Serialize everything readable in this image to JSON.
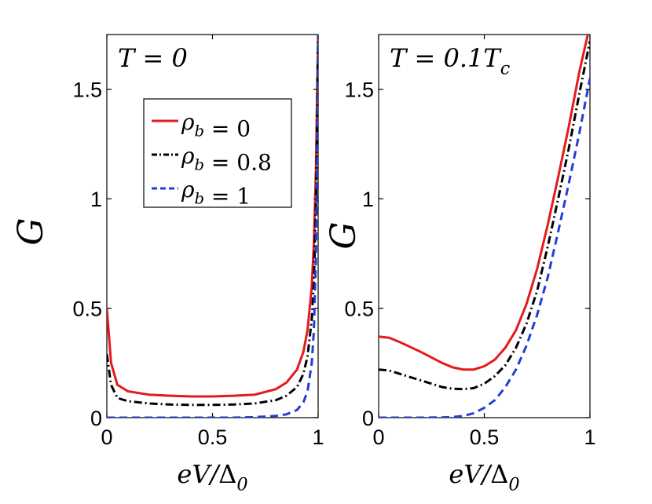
{
  "chart_data": [
    {
      "type": "line",
      "panel_label": "T = 0",
      "xlabel": "eV/Δ0",
      "ylabel": "G",
      "xlim": [
        0,
        1
      ],
      "ylim": [
        0,
        1.75
      ],
      "xticks": [
        "0",
        "0.5",
        "1"
      ],
      "yticks": [
        "0",
        "0.5",
        "1",
        "1.5"
      ],
      "grid": false,
      "legend": "upper-center",
      "series": [
        {
          "name": "ρb = 0",
          "color": "#e41a1c",
          "style": "solid",
          "x": [
            0,
            0.02,
            0.05,
            0.1,
            0.2,
            0.3,
            0.4,
            0.5,
            0.6,
            0.7,
            0.8,
            0.85,
            0.9,
            0.93,
            0.95,
            0.97,
            0.98,
            0.99,
            0.995,
            1.0
          ],
          "y": [
            0.5,
            0.25,
            0.15,
            0.12,
            0.105,
            0.1,
            0.097,
            0.097,
            0.1,
            0.105,
            0.13,
            0.16,
            0.22,
            0.3,
            0.4,
            0.6,
            0.8,
            1.15,
            1.5,
            1.75
          ]
        },
        {
          "name": "ρb = 0.8",
          "color": "#000000",
          "style": "dashdot",
          "x": [
            0,
            0.02,
            0.05,
            0.1,
            0.2,
            0.3,
            0.4,
            0.5,
            0.6,
            0.7,
            0.8,
            0.85,
            0.9,
            0.93,
            0.95,
            0.97,
            0.98,
            0.99,
            0.995,
            1.0
          ],
          "y": [
            0.29,
            0.15,
            0.09,
            0.075,
            0.065,
            0.06,
            0.058,
            0.058,
            0.06,
            0.065,
            0.08,
            0.1,
            0.14,
            0.2,
            0.28,
            0.45,
            0.62,
            1.0,
            1.35,
            1.75
          ]
        },
        {
          "name": "ρb = 1",
          "color": "#1f3fd6",
          "style": "dashed",
          "x": [
            0,
            0.2,
            0.4,
            0.6,
            0.7,
            0.8,
            0.85,
            0.9,
            0.93,
            0.95,
            0.97,
            0.98,
            0.99,
            0.995,
            1.0
          ],
          "y": [
            0.0,
            0.0,
            0.0,
            0.0,
            0.002,
            0.008,
            0.015,
            0.035,
            0.07,
            0.12,
            0.25,
            0.4,
            0.75,
            1.2,
            1.75
          ]
        }
      ]
    },
    {
      "type": "line",
      "panel_label": "T = 0.1Tc",
      "xlabel": "eV/Δ0",
      "ylabel": "G",
      "xlim": [
        0,
        1
      ],
      "ylim": [
        0,
        1.75
      ],
      "xticks": [
        "0",
        "0.5",
        "1"
      ],
      "yticks": [
        "0",
        "0.5",
        "1",
        "1.5"
      ],
      "grid": false,
      "series": [
        {
          "name": "ρb = 0",
          "color": "#e41a1c",
          "style": "solid",
          "x": [
            0,
            0.05,
            0.1,
            0.2,
            0.3,
            0.35,
            0.4,
            0.45,
            0.5,
            0.55,
            0.6,
            0.65,
            0.7,
            0.75,
            0.8,
            0.85,
            0.9,
            0.95,
            0.99
          ],
          "y": [
            0.37,
            0.365,
            0.345,
            0.3,
            0.25,
            0.23,
            0.22,
            0.22,
            0.235,
            0.265,
            0.32,
            0.4,
            0.52,
            0.68,
            0.88,
            1.1,
            1.33,
            1.58,
            1.75
          ]
        },
        {
          "name": "ρb = 0.8",
          "color": "#000000",
          "style": "dashdot",
          "x": [
            0,
            0.05,
            0.1,
            0.2,
            0.3,
            0.35,
            0.4,
            0.45,
            0.5,
            0.55,
            0.6,
            0.65,
            0.7,
            0.75,
            0.8,
            0.85,
            0.9,
            0.95,
            1.0
          ],
          "y": [
            0.22,
            0.215,
            0.2,
            0.17,
            0.14,
            0.132,
            0.13,
            0.135,
            0.155,
            0.19,
            0.24,
            0.32,
            0.43,
            0.58,
            0.78,
            1.0,
            1.23,
            1.48,
            1.72
          ]
        },
        {
          "name": "ρb = 1",
          "color": "#1f3fd6",
          "style": "dashed",
          "x": [
            0,
            0.1,
            0.2,
            0.3,
            0.35,
            0.4,
            0.45,
            0.5,
            0.55,
            0.6,
            0.65,
            0.7,
            0.75,
            0.8,
            0.85,
            0.9,
            0.95,
            1.0
          ],
          "y": [
            0.0,
            0.0,
            0.0,
            0.001,
            0.003,
            0.008,
            0.02,
            0.045,
            0.08,
            0.14,
            0.22,
            0.33,
            0.47,
            0.64,
            0.85,
            1.07,
            1.3,
            1.55
          ]
        }
      ]
    }
  ]
}
